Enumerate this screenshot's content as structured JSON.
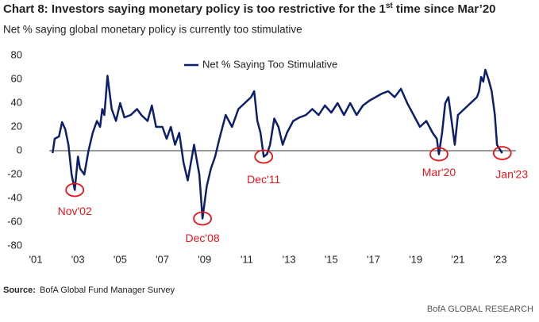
{
  "chart_data": {
    "type": "line",
    "title": "Chart 8: Investors saying monetary policy is too restrictive for the 1",
    "title_sup": "st",
    "title_end": " time since Mar’20",
    "subtitle": "Net % saying global monetary policy is currently too stimulative",
    "source_label": "Source:",
    "source": "BofA Global Fund Manager Survey",
    "footer": "BofA GLOBAL RESEARCH",
    "legend": "top",
    "series": [
      {
        "name": "Net % Saying Too Stimulative",
        "color": "#0b1f6b",
        "x": [
          2001.8,
          2001.9,
          2002.1,
          2002.25,
          2002.4,
          2002.55,
          2002.7,
          2002.85,
          2003.0,
          2003.1,
          2003.3,
          2003.5,
          2003.7,
          2003.9,
          2004.05,
          2004.15,
          2004.25,
          2004.32,
          2004.4,
          2004.6,
          2004.8,
          2005.0,
          2005.2,
          2005.5,
          2005.8,
          2006.0,
          2006.3,
          2006.5,
          2006.7,
          2007.0,
          2007.2,
          2007.4,
          2007.6,
          2007.8,
          2008.0,
          2008.2,
          2008.35,
          2008.5,
          2008.6,
          2008.75,
          2008.9,
          2009.1,
          2009.3,
          2009.5,
          2009.7,
          2010.0,
          2010.3,
          2010.6,
          2010.9,
          2011.2,
          2011.35,
          2011.5,
          2011.65,
          2011.8,
          2011.95,
          2012.1,
          2012.3,
          2012.5,
          2012.7,
          2012.9,
          2013.2,
          2013.5,
          2013.8,
          2014.1,
          2014.4,
          2014.7,
          2015.0,
          2015.3,
          2015.6,
          2015.9,
          2016.2,
          2016.5,
          2016.8,
          2017.1,
          2017.4,
          2017.7,
          2018.0,
          2018.3,
          2018.6,
          2018.9,
          2019.2,
          2019.5,
          2019.8,
          2020.0,
          2020.1,
          2020.25,
          2020.4,
          2020.55,
          2020.7,
          2020.85,
          2021.0,
          2021.3,
          2021.6,
          2021.9,
          2022.0,
          2022.1,
          2022.2,
          2022.3,
          2022.45,
          2022.6,
          2022.75,
          2022.85,
          2022.95,
          2023.1
        ],
        "values": [
          -2,
          10,
          12,
          24,
          18,
          5,
          -20,
          -33,
          -5,
          -15,
          -20,
          0,
          15,
          25,
          20,
          35,
          30,
          45,
          63,
          35,
          25,
          40,
          28,
          30,
          35,
          30,
          25,
          38,
          20,
          20,
          10,
          20,
          5,
          15,
          -10,
          -25,
          -10,
          5,
          -5,
          -20,
          -57,
          -30,
          -15,
          -5,
          10,
          30,
          20,
          35,
          40,
          45,
          50,
          25,
          15,
          -5,
          -3,
          5,
          27,
          20,
          5,
          15,
          25,
          28,
          30,
          35,
          30,
          38,
          32,
          40,
          30,
          40,
          30,
          38,
          42,
          45,
          48,
          50,
          45,
          52,
          40,
          30,
          20,
          25,
          15,
          10,
          -3,
          15,
          40,
          45,
          25,
          5,
          30,
          35,
          40,
          45,
          50,
          62,
          58,
          68,
          60,
          50,
          30,
          5,
          2,
          -2
        ]
      }
    ],
    "annotations": [
      {
        "text": "Nov'02",
        "x": 2002.85,
        "y": -33
      },
      {
        "text": "Dec'08",
        "x": 2008.9,
        "y": -57
      },
      {
        "text": "Dec'11",
        "x": 2011.8,
        "y": -5
      },
      {
        "text": "Mar'20",
        "x": 2020.1,
        "y": -3
      },
      {
        "text": "Jan'23",
        "x": 2023.1,
        "y": -2
      }
    ],
    "xlim": [
      2001,
      2023.75
    ],
    "xticks": [
      {
        "value": 2001,
        "label": "'01"
      },
      {
        "value": 2003,
        "label": "'03"
      },
      {
        "value": 2005,
        "label": "'05"
      },
      {
        "value": 2007,
        "label": "'07"
      },
      {
        "value": 2009,
        "label": "'09"
      },
      {
        "value": 2011,
        "label": "'11"
      },
      {
        "value": 2013,
        "label": "'13"
      },
      {
        "value": 2015,
        "label": "'15"
      },
      {
        "value": 2017,
        "label": "'17"
      },
      {
        "value": 2019,
        "label": "'19"
      },
      {
        "value": 2021,
        "label": "'21"
      },
      {
        "value": 2023,
        "label": "'23"
      }
    ],
    "ylim": [
      -80,
      80
    ],
    "yticks": [
      -80,
      -60,
      -40,
      -20,
      0,
      20,
      40,
      60,
      80
    ]
  }
}
